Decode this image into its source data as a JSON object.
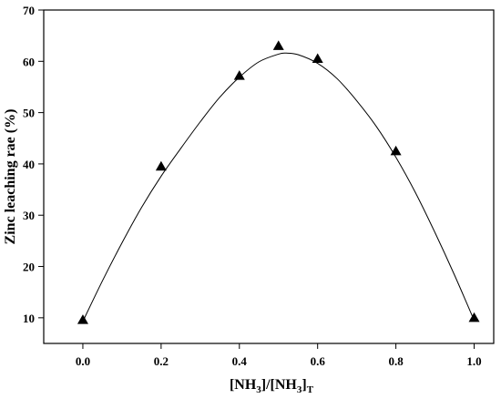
{
  "chart_data": {
    "type": "scatter",
    "title": "",
    "xlabel": {
      "base": "[NH",
      "sub1": "3",
      "mid": "]/[NH",
      "sub2": "3",
      "close": "]",
      "sub3": "T"
    },
    "ylabel": "Zinc leaching rae (%)",
    "xlim": [
      -0.1,
      1.05
    ],
    "ylim": [
      5,
      70
    ],
    "xticks": [
      "0.0",
      "0.2",
      "0.4",
      "0.6",
      "0.8",
      "1.0"
    ],
    "xtick_values": [
      0,
      0.2,
      0.4,
      0.6,
      0.8,
      1.0
    ],
    "yticks": [
      "10",
      "20",
      "30",
      "40",
      "50",
      "60",
      "70"
    ],
    "ytick_values": [
      10,
      20,
      30,
      40,
      50,
      60,
      70
    ],
    "grid": false,
    "marker": "triangle",
    "marker_color": "#000000",
    "line_color": "#000000",
    "series": [
      {
        "x": [
          0.0,
          0.2,
          0.4,
          0.5,
          0.6,
          0.8,
          1.0
        ],
        "y": [
          9.6,
          39.5,
          57.2,
          63.0,
          60.5,
          42.5,
          10.0
        ]
      }
    ],
    "fit_curve": {
      "x": [
        0.0,
        0.05,
        0.1,
        0.15,
        0.2,
        0.25,
        0.3,
        0.35,
        0.4,
        0.45,
        0.5,
        0.52,
        0.55,
        0.6,
        0.65,
        0.7,
        0.75,
        0.8,
        0.85,
        0.9,
        0.95,
        1.0
      ],
      "y": [
        9.3,
        17.2,
        24.6,
        31.5,
        37.6,
        43.0,
        48.2,
        53.0,
        56.9,
        59.9,
        61.4,
        61.6,
        61.3,
        59.6,
        56.6,
        52.3,
        47.3,
        41.3,
        34.4,
        26.6,
        18.3,
        9.5
      ]
    }
  }
}
